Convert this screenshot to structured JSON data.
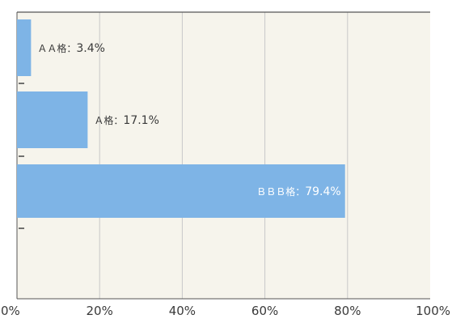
{
  "chart_data": {
    "type": "bar",
    "orientation": "horizontal",
    "categories": [
      "AA格",
      "A格",
      "BBB格"
    ],
    "values": [
      3.4,
      17.1,
      79.4
    ],
    "data_labels": [
      {
        "rating": "ＡＡ格",
        "sep": "：",
        "pct": "3.4%"
      },
      {
        "rating": "Ａ格",
        "sep": "：",
        "pct": "17.1%"
      },
      {
        "rating": "ＢＢＢ格",
        "sep": "：",
        "pct": "79.4%"
      }
    ],
    "xlim": [
      0,
      100
    ],
    "x_ticks": [
      "0%",
      "20%",
      "40%",
      "60%",
      "80%",
      "100%"
    ],
    "grid": true,
    "legend": "none",
    "title": "",
    "xlabel": "",
    "ylabel": "",
    "colors": {
      "bar": "#7eb4e6",
      "plot_bg": "#f6f4ec",
      "grid": "#c8c8c8",
      "axis": "#555555",
      "label_outside": "#3a3a3a",
      "label_inside": "#ffffff"
    }
  }
}
